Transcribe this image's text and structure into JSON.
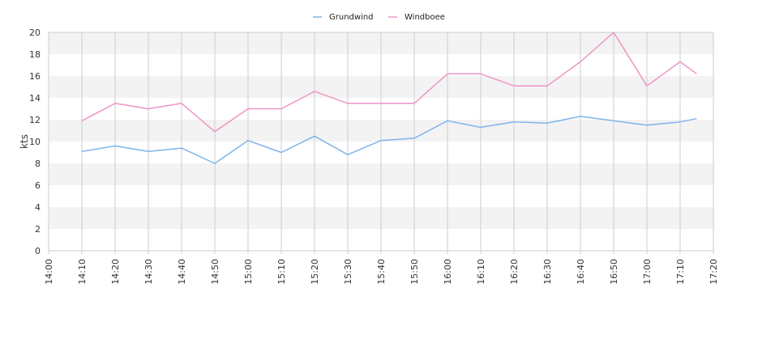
{
  "chart_data": {
    "type": "line",
    "ylabel": "kts",
    "ylim": [
      0,
      20
    ],
    "y_ticks": [
      "0",
      "2",
      "4",
      "6",
      "8",
      "10",
      "12",
      "14",
      "16",
      "18",
      "20"
    ],
    "x_ticks": [
      "14:00",
      "14:10",
      "14:20",
      "14:30",
      "14:40",
      "14:50",
      "15:00",
      "15:10",
      "15:20",
      "15:30",
      "15:40",
      "15:50",
      "16:00",
      "16:10",
      "16:20",
      "16:30",
      "16:40",
      "16:50",
      "17:00",
      "17:10",
      "17:20"
    ],
    "x_range": [
      "14:00",
      "17:20"
    ],
    "grid": "horizontal bands and vertical lines",
    "legend_position": "top-center",
    "x": [
      "14:10",
      "14:20",
      "14:30",
      "14:40",
      "14:50",
      "15:00",
      "15:10",
      "15:20",
      "15:30",
      "15:40",
      "15:50",
      "16:00",
      "16:10",
      "16:20",
      "16:30",
      "16:40",
      "16:50",
      "17:00",
      "17:10",
      "17:15"
    ],
    "series": [
      {
        "name": "Grundwind",
        "color": "#7eb5ec",
        "values": [
          9.1,
          9.6,
          9.1,
          9.4,
          8.0,
          10.1,
          9.0,
          10.5,
          8.8,
          10.1,
          10.3,
          11.9,
          11.3,
          11.8,
          11.7,
          12.3,
          11.9,
          11.5,
          11.8,
          12.1
        ]
      },
      {
        "name": "Windboee",
        "color": "#ed95c5",
        "values": [
          11.9,
          13.5,
          13.0,
          13.5,
          10.9,
          13.0,
          13.0,
          14.6,
          13.5,
          13.5,
          13.5,
          16.2,
          16.2,
          15.1,
          15.1,
          17.3,
          20.0,
          15.1,
          17.3,
          16.2
        ]
      }
    ]
  }
}
